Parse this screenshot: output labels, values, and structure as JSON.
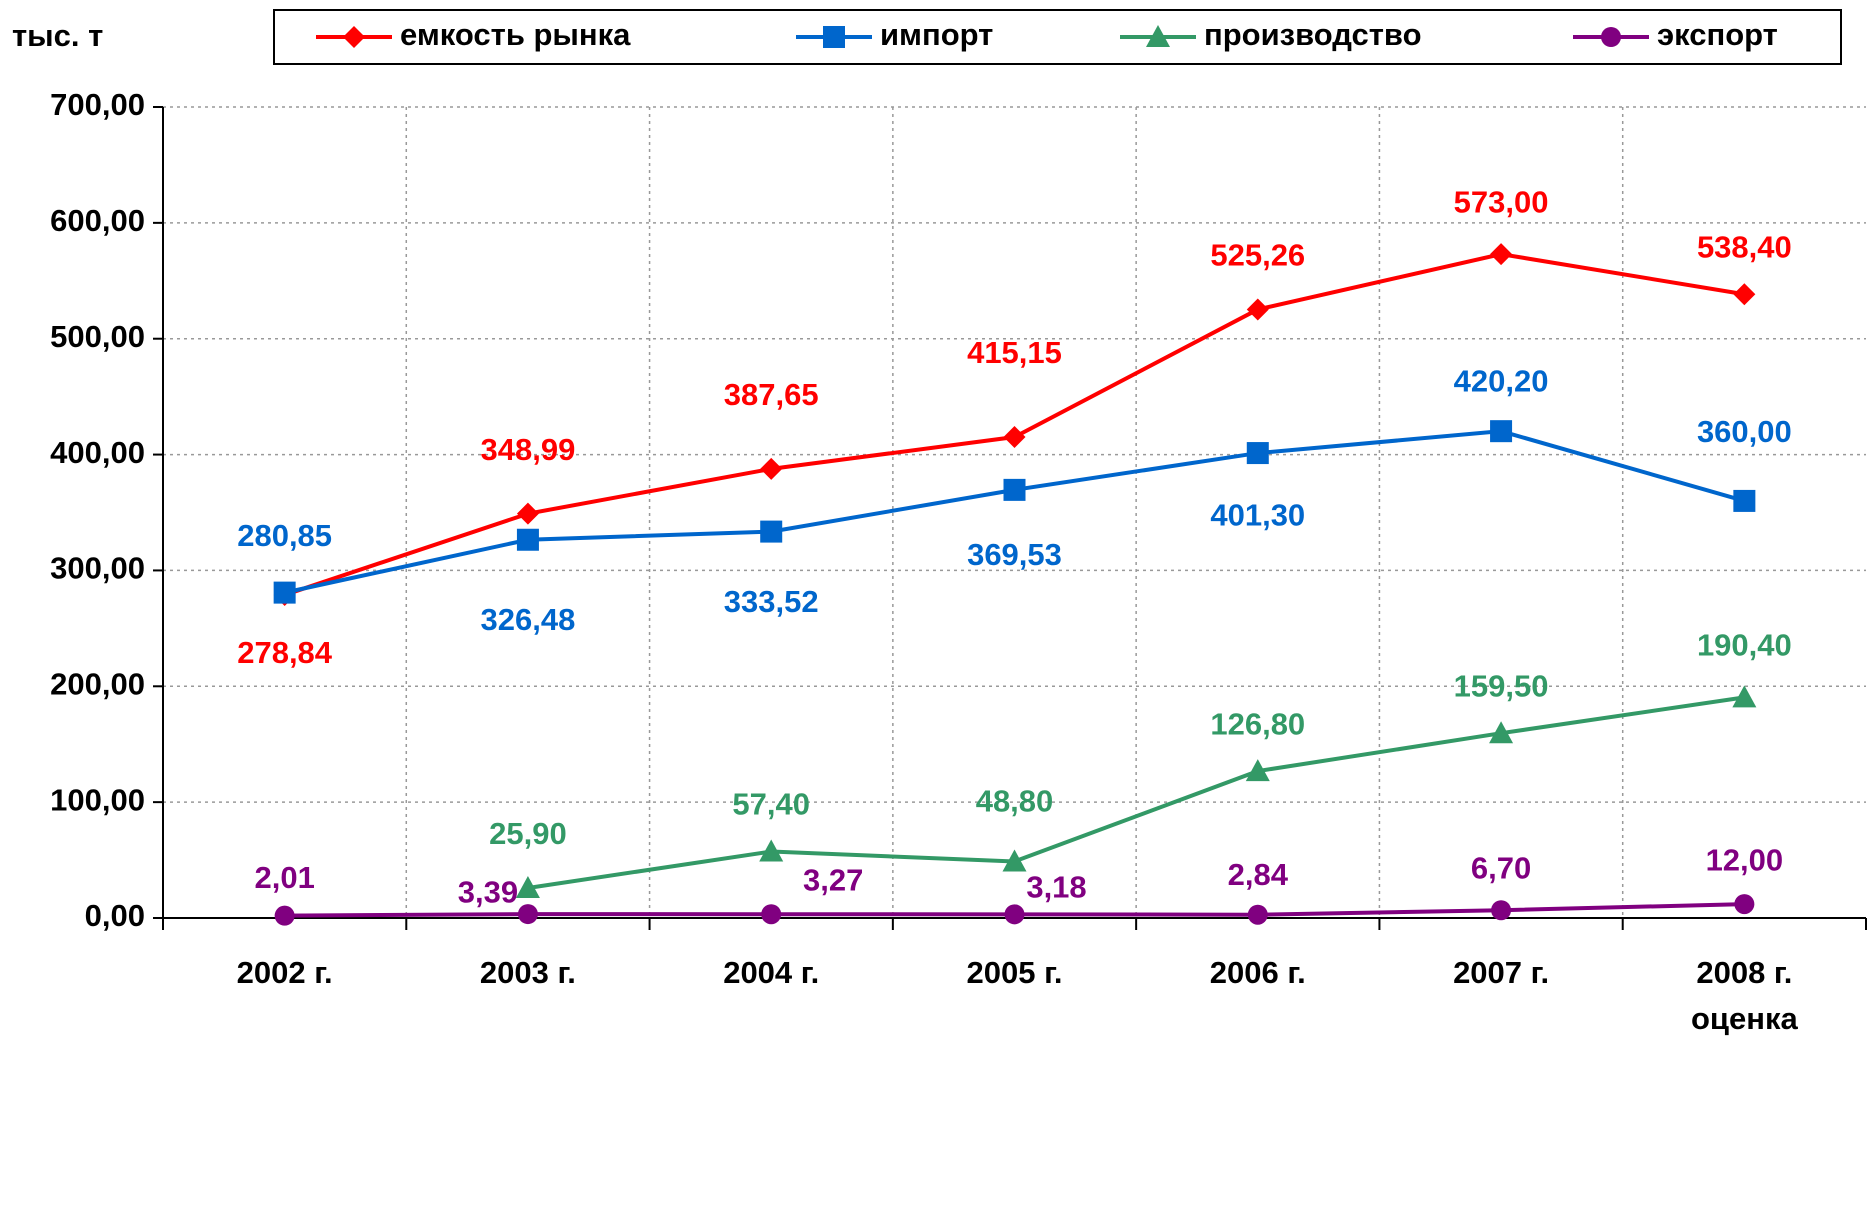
{
  "chart_data": {
    "type": "line",
    "y_label": "тыс. т",
    "categories": [
      "2002 г.",
      "2003 г.",
      "2004 г.",
      "2005 г.",
      "2006 г.",
      "2007 г.",
      "2008 г.\nоценка"
    ],
    "series": [
      {
        "name": "емкость рынка",
        "color": "#ff0000",
        "marker": "diamond",
        "values": [
          278.84,
          348.99,
          387.65,
          415.15,
          525.26,
          573.0,
          538.4
        ],
        "value_labels": [
          "278,84",
          "348,99",
          "387,65",
          "415,15",
          "525,26",
          "573,00",
          "538,40"
        ]
      },
      {
        "name": "импорт",
        "color": "#0066cc",
        "marker": "square",
        "values": [
          280.85,
          326.48,
          333.52,
          369.53,
          401.3,
          420.2,
          360.0
        ],
        "value_labels": [
          "280,85",
          "326,48",
          "333,52",
          "369,53",
          "401,30",
          "420,20",
          "360,00"
        ]
      },
      {
        "name": "производство",
        "color": "#339966",
        "marker": "triangle",
        "values": [
          null,
          25.9,
          57.4,
          48.8,
          126.8,
          159.5,
          190.4
        ],
        "value_labels": [
          null,
          "25,90",
          "57,40",
          "48,80",
          "126,80",
          "159,50",
          "190,40"
        ]
      },
      {
        "name": "экспорт",
        "color": "#800080",
        "marker": "circle",
        "values": [
          2.01,
          3.39,
          3.27,
          3.18,
          2.84,
          6.7,
          12.0
        ],
        "value_labels": [
          "2,01",
          "3,39",
          "3,27",
          "3,18",
          "2,84",
          "6,70",
          "12,00"
        ]
      }
    ],
    "ylim": [
      0,
      700
    ],
    "yticks": [
      {
        "value": 0,
        "label": "0,00"
      },
      {
        "value": 100,
        "label": "100,00"
      },
      {
        "value": 200,
        "label": "200,00"
      },
      {
        "value": 300,
        "label": "300,00"
      },
      {
        "value": 400,
        "label": "400,00"
      },
      {
        "value": 500,
        "label": "500,00"
      },
      {
        "value": 600,
        "label": "600,00"
      },
      {
        "value": 700,
        "label": "700,00"
      }
    ],
    "grid": true,
    "legend": "top"
  }
}
